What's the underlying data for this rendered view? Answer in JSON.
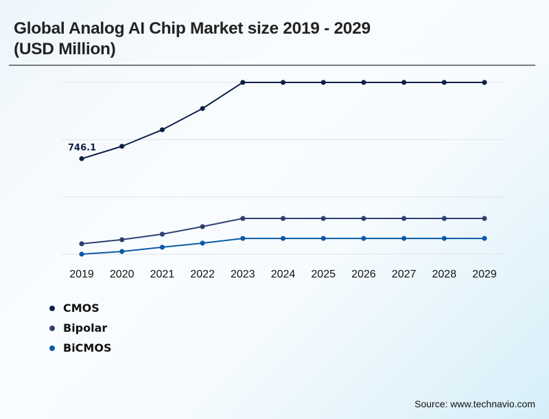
{
  "title_line1": "Global Analog AI Chip Market size 2019 - 2029",
  "title_line2": "(USD Million)",
  "source": "Source: www.technavio.com",
  "chart_data": {
    "type": "line",
    "title": "Global Analog AI Chip Market size 2019 - 2029 (USD Million)",
    "xlabel": "",
    "ylabel": "",
    "x": [
      "2019",
      "2020",
      "2021",
      "2022",
      "2023",
      "2024",
      "2025",
      "2026",
      "2027",
      "2028",
      "2029"
    ],
    "ylim": [
      0,
      1342
    ],
    "y_gridlines": [
      0,
      447,
      895,
      1342
    ],
    "y_tick_labels_shown": false,
    "grid": true,
    "legend_position": "bottom-left",
    "series": [
      {
        "name": "CMOS",
        "color": "#0d1f45",
        "values": [
          746.1,
          843,
          972,
          1138,
          1342,
          1342,
          1342,
          1342,
          1342,
          1342,
          1342
        ]
      },
      {
        "name": "Bipolar",
        "color": "#2e4071",
        "values": [
          81,
          113,
          156,
          215,
          279,
          279,
          279,
          279,
          279,
          279,
          279
        ]
      },
      {
        "name": "BiCMOS",
        "color": "#0a5aa8",
        "values": [
          0,
          21,
          54,
          86,
          123,
          123,
          123,
          123,
          123,
          123,
          123
        ]
      }
    ],
    "annotations": [
      {
        "series": "CMOS",
        "x": "2019",
        "text": "746.1"
      }
    ]
  }
}
